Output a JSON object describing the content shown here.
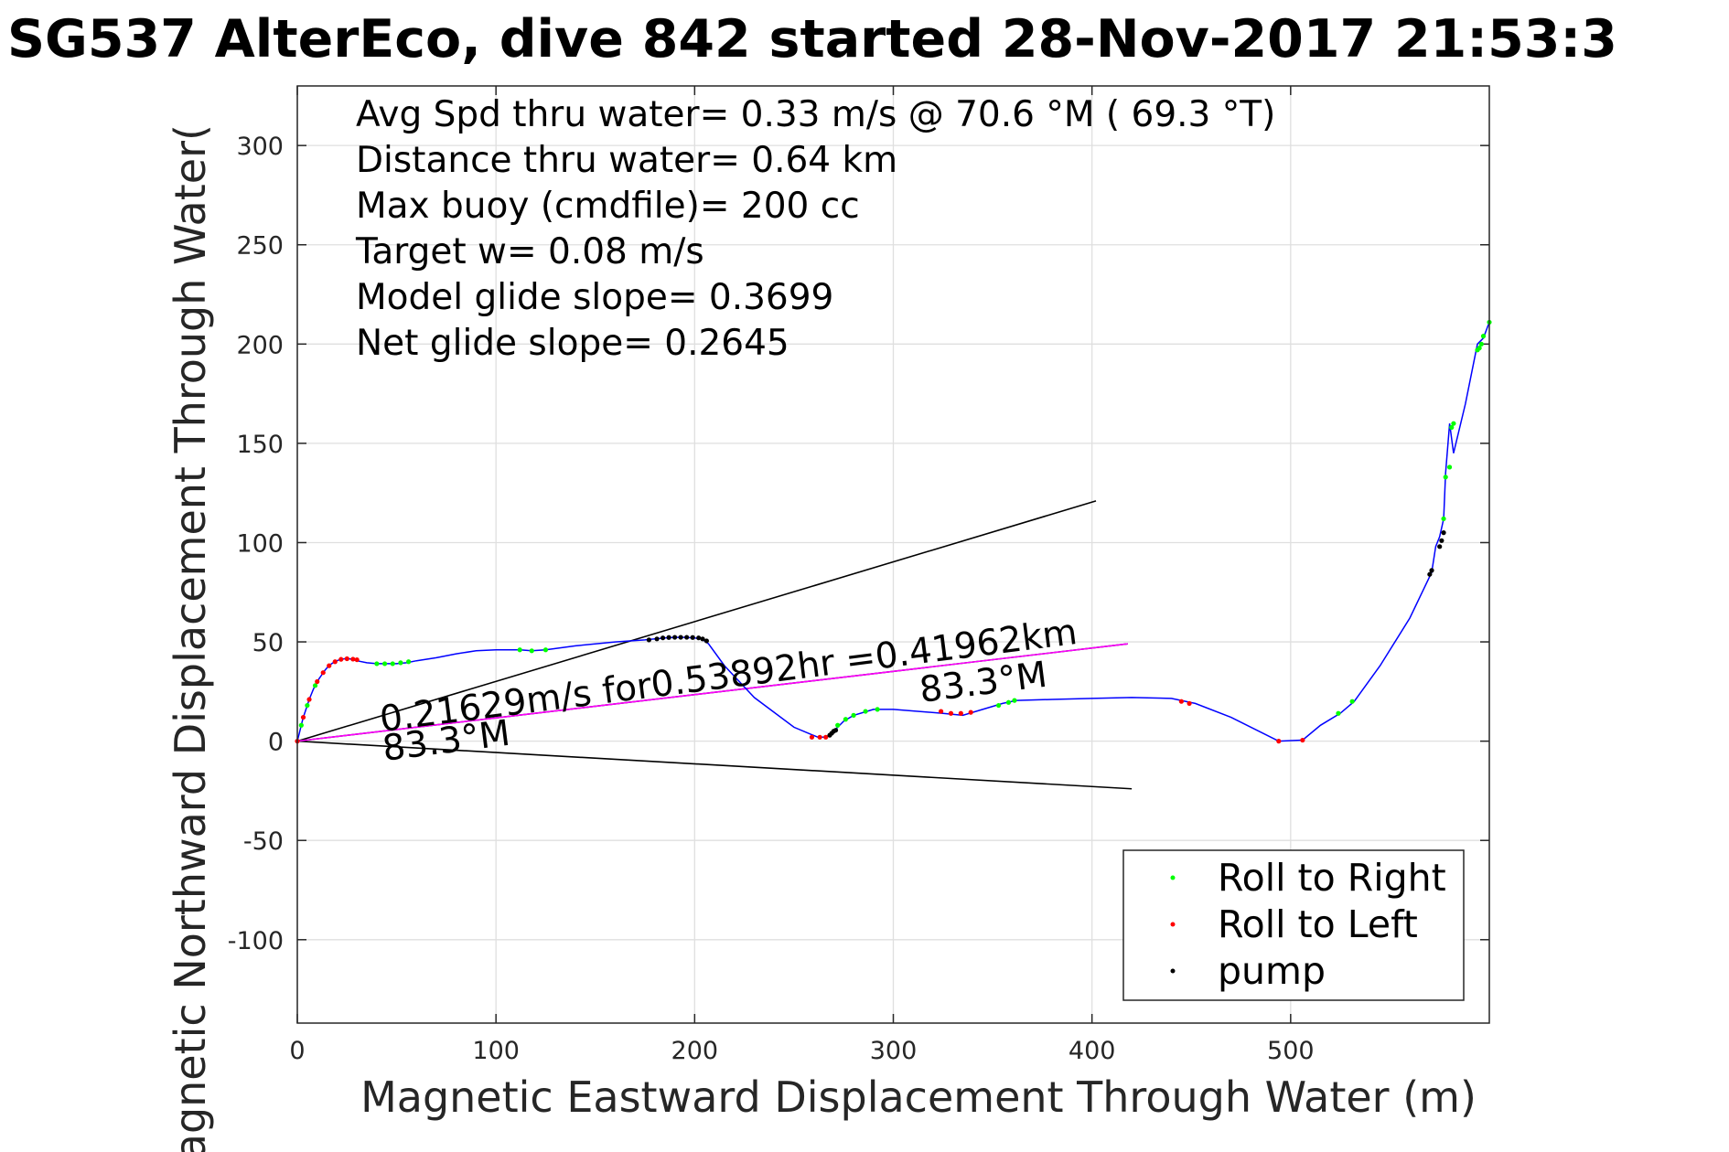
{
  "chart_data": {
    "type": "line",
    "title": "SG537 AlterEco, dive 842 started 28-Nov-2017 21:53:3",
    "xlabel": "Magnetic Eastward Displacement Through Water (m)",
    "ylabel": "Magnetic Northward Displacement Through Water(",
    "xlim": [
      0,
      600
    ],
    "ylim": [
      -142,
      330
    ],
    "xticks": [
      "0",
      "100",
      "200",
      "300",
      "400",
      "500"
    ],
    "yticks": [
      "300",
      "250",
      "200",
      "150",
      "100",
      "50",
      "0",
      "-50",
      "-100"
    ],
    "grid": true,
    "legend_position": "bottom-right",
    "annotations": [
      "Avg Spd thru water=  0.33 m/s @  70.6 °M ( 69.3 °T)",
      "Distance thru water=  0.64 km",
      "Max buoy (cmdfile)= 200 cc",
      "Target w= 0.08 m/s",
      "Model glide slope= 0.3699",
      "Net glide slope= 0.2645"
    ],
    "current_label": "0.21629m/s for0.53892hr =0.41962km",
    "heading_labels": [
      "83.3°M",
      "83.3°M"
    ],
    "track": {
      "color": "#0000ff",
      "x": [
        0,
        1,
        2,
        3,
        4,
        5,
        6,
        7,
        8,
        9,
        10,
        11,
        12,
        13,
        14,
        15,
        16,
        17,
        18,
        19,
        20,
        21,
        22,
        23,
        24,
        25,
        26,
        27,
        28,
        30,
        35,
        40,
        45,
        50,
        55,
        60,
        70,
        80,
        90,
        100,
        112,
        118,
        125,
        140,
        160,
        175,
        180,
        185,
        190,
        195,
        200,
        203,
        205,
        207,
        215,
        230,
        250,
        262,
        266,
        268,
        270,
        272,
        275,
        280,
        290,
        300,
        325,
        335,
        345,
        355,
        362,
        380,
        400,
        420,
        440,
        452,
        470,
        494,
        506,
        515,
        525,
        532,
        545,
        560,
        571,
        573,
        575,
        577,
        578,
        580,
        582,
        588,
        593,
        594,
        597,
        600
      ],
      "y": [
        0,
        4,
        8,
        12,
        15,
        18,
        21,
        23.5,
        26,
        28,
        30,
        31.5,
        33,
        34.5,
        35.8,
        37,
        38,
        38.8,
        39.5,
        40,
        40.5,
        40.9,
        41.2,
        41.4,
        41.5,
        41.6,
        41.5,
        41.3,
        41.0,
        40.5,
        39.5,
        39,
        39,
        39,
        39.5,
        40.5,
        42,
        44,
        45.5,
        46,
        46,
        45.5,
        46,
        48,
        50,
        51,
        51.5,
        52,
        52.3,
        52.3,
        52,
        51.5,
        50.5,
        49,
        38,
        22,
        7,
        2,
        2,
        3,
        5,
        7,
        10,
        13,
        16,
        16,
        14,
        13,
        16,
        19,
        20.5,
        21,
        21.5,
        22,
        21.5,
        19,
        12,
        0,
        0.5,
        8,
        14,
        20,
        38,
        62,
        85,
        98,
        103,
        112,
        135,
        160,
        145,
        170,
        195,
        200,
        203,
        211
      ]
    },
    "roll_to_right": {
      "color": "#00ff00",
      "x": [
        2,
        5,
        9,
        40,
        44,
        48,
        52,
        56,
        112,
        118,
        125,
        272,
        276,
        280,
        286,
        292,
        353,
        358,
        361,
        524,
        531,
        577,
        578,
        580,
        581,
        582,
        594,
        595,
        596,
        597,
        600
      ],
      "y": [
        8,
        18,
        28,
        39,
        39,
        39,
        39.5,
        40,
        46,
        45.5,
        46,
        8,
        11,
        13,
        15,
        16,
        18,
        19.5,
        20.5,
        14,
        20,
        112,
        133,
        138,
        158,
        160,
        197,
        198,
        200,
        204,
        211
      ]
    },
    "roll_to_left": {
      "color": "#ff0000",
      "x": [
        0,
        3,
        6,
        10,
        13,
        16,
        19,
        22,
        25,
        28,
        30,
        259,
        263,
        266,
        324,
        329,
        334,
        339,
        445,
        449,
        494,
        506
      ],
      "y": [
        0,
        12,
        21,
        30,
        34.5,
        38,
        40,
        41.2,
        41.5,
        41.3,
        41,
        2,
        2,
        2,
        15,
        14,
        14,
        14.5,
        20,
        19,
        0,
        0.5
      ]
    },
    "pump": {
      "color": "#000000",
      "x": [
        177,
        181,
        184,
        187,
        190,
        193,
        196,
        199,
        202,
        204,
        206,
        268,
        269,
        270,
        271,
        570,
        571,
        575,
        576,
        577
      ],
      "y": [
        51,
        51.5,
        52,
        52.2,
        52.3,
        52.3,
        52.3,
        52.2,
        52,
        51.5,
        50.5,
        3,
        4,
        5,
        5.5,
        84,
        86,
        98,
        101,
        105
      ]
    },
    "reference_lines": [
      {
        "color": "#000000",
        "x": [
          0,
          402
        ],
        "y": [
          0,
          121
        ]
      },
      {
        "color": "#000000",
        "x": [
          0,
          420
        ],
        "y": [
          0,
          -24
        ]
      },
      {
        "color": "#000000",
        "x": [
          0,
          418
        ],
        "y": [
          0,
          49
        ]
      }
    ],
    "current_line": {
      "color": "#ff00ff",
      "x": [
        0,
        418
      ],
      "y": [
        0,
        49
      ]
    },
    "legend": [
      {
        "label": "Roll to Right",
        "color": "#00ff00"
      },
      {
        "label": "Roll to Left",
        "color": "#ff0000"
      },
      {
        "label": "pump",
        "color": "#000000"
      }
    ]
  }
}
